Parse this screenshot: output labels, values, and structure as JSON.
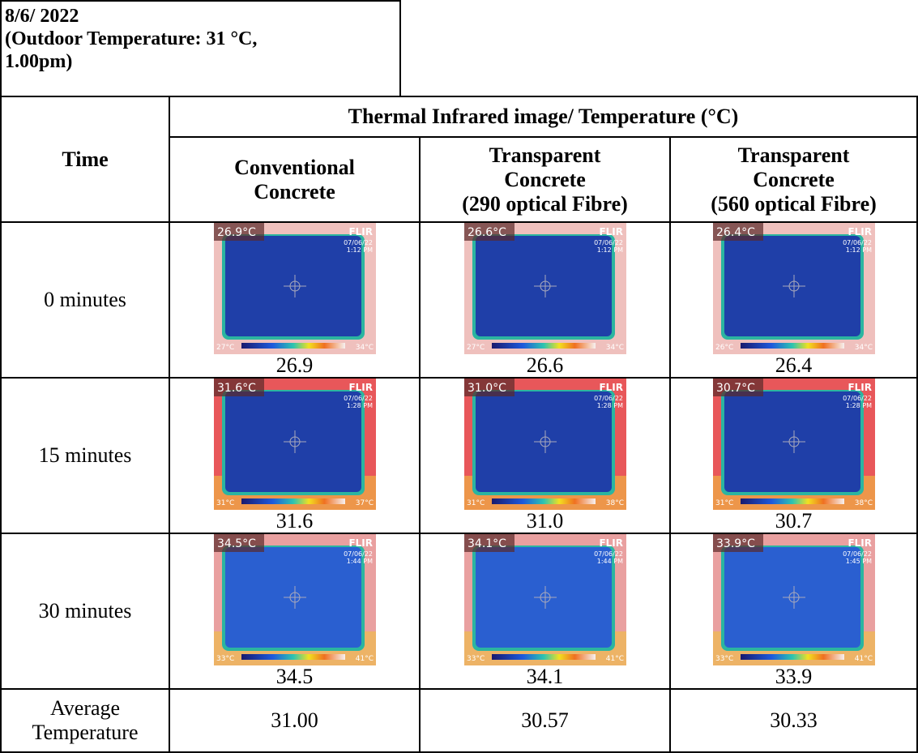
{
  "header": {
    "lines": [
      "8/6/ 2022",
      "(Outdoor Temperature: 31 °C,",
      "1.00pm)"
    ]
  },
  "table": {
    "group_header": "Thermal Infrared image/ Temperature (°C)",
    "time_header": "Time",
    "column_headers": [
      [
        "Conventional",
        "Concrete"
      ],
      [
        "Transparent",
        "Concrete",
        "(290 optical Fibre)"
      ],
      [
        "Transparent",
        "Concrete",
        "(560 optical Fibre)"
      ]
    ],
    "brand": "FLIR",
    "rows": [
      {
        "time": "0 minutes",
        "cells": [
          {
            "value": "26.9",
            "image": {
              "reading": "26.9°C",
              "date": "07/06/22",
              "clock": "1:12 PM",
              "scale_min": "27°C",
              "scale_max": "34°C"
            }
          },
          {
            "value": "26.6",
            "image": {
              "reading": "26.6°C",
              "date": "07/06/22",
              "clock": "1:12 PM",
              "scale_min": "27°C",
              "scale_max": "34°C"
            }
          },
          {
            "value": "26.4",
            "image": {
              "reading": "26.4°C",
              "date": "07/06/22",
              "clock": "1:12 PM",
              "scale_min": "26°C",
              "scale_max": "34°C"
            }
          }
        ]
      },
      {
        "time": "15 minutes",
        "cells": [
          {
            "value": "31.6",
            "image": {
              "reading": "31.6°C",
              "date": "07/06/22",
              "clock": "1:28 PM",
              "scale_min": "31°C",
              "scale_max": "37°C"
            }
          },
          {
            "value": "31.0",
            "image": {
              "reading": "31.0°C",
              "date": "07/06/22",
              "clock": "1:28 PM",
              "scale_min": "31°C",
              "scale_max": "38°C"
            }
          },
          {
            "value": "30.7",
            "image": {
              "reading": "30.7°C",
              "date": "07/06/22",
              "clock": "1:28 PM",
              "scale_min": "31°C",
              "scale_max": "38°C"
            }
          }
        ]
      },
      {
        "time": "30 minutes",
        "cells": [
          {
            "value": "34.5",
            "image": {
              "reading": "34.5°C",
              "date": "07/06/22",
              "clock": "1:44 PM",
              "scale_min": "33°C",
              "scale_max": "41°C"
            }
          },
          {
            "value": "34.1",
            "image": {
              "reading": "34.1°C",
              "date": "07/06/22",
              "clock": "1:44 PM",
              "scale_min": "33°C",
              "scale_max": "41°C"
            }
          },
          {
            "value": "33.9",
            "image": {
              "reading": "33.9°C",
              "date": "07/06/22",
              "clock": "1:45 PM",
              "scale_min": "33°C",
              "scale_max": "41°C"
            }
          }
        ]
      }
    ],
    "average": {
      "label": [
        "Average",
        "Temperature"
      ],
      "values": [
        "31.00",
        "30.57",
        "30.33"
      ]
    }
  }
}
